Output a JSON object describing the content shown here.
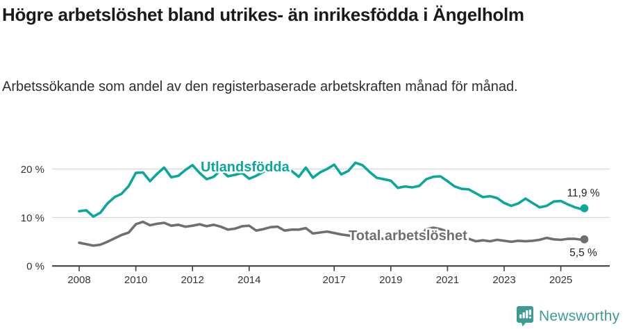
{
  "title": "Högre arbetslöshet bland utrikes- än inrikesfödda i Ängelholm",
  "subtitle": "Arbetssökande som andel av den registerbaserade arbetskraften månad för månad.",
  "branding": {
    "logo_text": "Newsworthy",
    "logo_icon": "newsworthy-speech-bubble-bar-chart-icon",
    "logo_color": "#3e9b94"
  },
  "colors": {
    "foreign_born_line": "#0ba79b",
    "total_line": "#6e6e73",
    "title_text": "#1a1a1a",
    "axis_text": "#333333",
    "gridline": "#d8d8d8",
    "axis_line": "#414141",
    "end_label_text": "#222222"
  },
  "chart_data": {
    "type": "line",
    "title": "Högre arbetslöshet bland utrikes- än inrikesfödda i Ängelholm",
    "subtitle": "Arbetssökande som andel av den registerbaserade arbetskraften månad för månad.",
    "x_unit": "decimal year",
    "grid": "horizontal",
    "legend": "inline-series-labels",
    "ylim": [
      0,
      22
    ],
    "yticks": [
      {
        "value": 0,
        "label": "0 %"
      },
      {
        "value": 10,
        "label": "10 %"
      },
      {
        "value": 20,
        "label": "20 %"
      }
    ],
    "xticks": [
      {
        "value": 2008,
        "label": "2008"
      },
      {
        "value": 2010,
        "label": "2010"
      },
      {
        "value": 2012,
        "label": "2012"
      },
      {
        "value": 2014,
        "label": "2014"
      },
      {
        "value": 2017,
        "label": "2017"
      },
      {
        "value": 2019,
        "label": "2019"
      },
      {
        "value": 2021,
        "label": "2021"
      },
      {
        "value": 2023,
        "label": "2023"
      },
      {
        "value": 2025,
        "label": "2025"
      }
    ],
    "x": [
      2008,
      2008.25,
      2008.5,
      2008.75,
      2009,
      2009.25,
      2009.5,
      2009.75,
      2010,
      2010.25,
      2010.5,
      2010.75,
      2011,
      2011.25,
      2011.5,
      2011.75,
      2012,
      2012.25,
      2012.5,
      2012.75,
      2013,
      2013.25,
      2013.5,
      2013.75,
      2014,
      2014.25,
      2014.5,
      2014.75,
      2015,
      2015.25,
      2015.5,
      2015.75,
      2016,
      2016.25,
      2016.5,
      2016.75,
      2017,
      2017.25,
      2017.5,
      2017.75,
      2018,
      2018.25,
      2018.5,
      2018.75,
      2019,
      2019.25,
      2019.5,
      2019.75,
      2020,
      2020.25,
      2020.5,
      2020.75,
      2021,
      2021.25,
      2021.5,
      2021.75,
      2022,
      2022.25,
      2022.5,
      2022.75,
      2023,
      2023.25,
      2023.5,
      2023.75,
      2024,
      2024.25,
      2024.5,
      2024.75,
      2025,
      2025.25,
      2025.5,
      2025.75,
      2025.83
    ],
    "series": [
      {
        "name": "Utlandsfödda",
        "color": "#0ba79b",
        "end_label": "11,9 %",
        "end_value": 11.9,
        "values": [
          11.3,
          11.5,
          10.2,
          11.0,
          12.9,
          14.2,
          14.9,
          16.5,
          19.2,
          19.3,
          17.5,
          19.0,
          20.3,
          18.3,
          18.6,
          19.8,
          20.8,
          19.2,
          17.9,
          18.4,
          19.8,
          18.5,
          18.8,
          19.2,
          18.0,
          18.6,
          19.4,
          20.4,
          19.8,
          19.4,
          19.6,
          18.4,
          20.3,
          18.2,
          19.3,
          20.0,
          20.9,
          18.9,
          19.6,
          21.3,
          20.8,
          19.4,
          18.2,
          17.9,
          17.6,
          16.1,
          16.4,
          16.2,
          16.5,
          17.9,
          18.4,
          18.5,
          17.5,
          16.4,
          15.9,
          15.8,
          15.0,
          14.2,
          14.4,
          14.0,
          13.0,
          12.4,
          12.9,
          13.9,
          13.0,
          12.1,
          12.4,
          13.3,
          13.4,
          12.7,
          12.1,
          11.7,
          11.9
        ]
      },
      {
        "name": "Total arbetslöshet",
        "color": "#6e6e73",
        "end_label": "5,5 %",
        "end_value": 5.5,
        "values": [
          4.8,
          4.5,
          4.2,
          4.4,
          5.0,
          5.7,
          6.4,
          6.9,
          8.6,
          9.1,
          8.4,
          8.7,
          8.9,
          8.3,
          8.5,
          8.1,
          8.3,
          8.6,
          8.2,
          8.5,
          8.1,
          7.5,
          7.7,
          8.2,
          8.3,
          7.3,
          7.6,
          8.0,
          8.1,
          7.3,
          7.5,
          7.5,
          7.8,
          6.7,
          6.9,
          7.1,
          6.8,
          6.5,
          6.3,
          6.1,
          5.9,
          5.8,
          5.7,
          5.6,
          5.5,
          5.4,
          5.4,
          5.5,
          5.9,
          7.6,
          7.9,
          7.6,
          7.1,
          6.6,
          6.1,
          5.6,
          5.1,
          5.3,
          5.1,
          5.4,
          5.2,
          5.0,
          5.2,
          5.1,
          5.2,
          5.4,
          5.8,
          5.5,
          5.4,
          5.6,
          5.6,
          5.4,
          5.5
        ]
      }
    ]
  }
}
